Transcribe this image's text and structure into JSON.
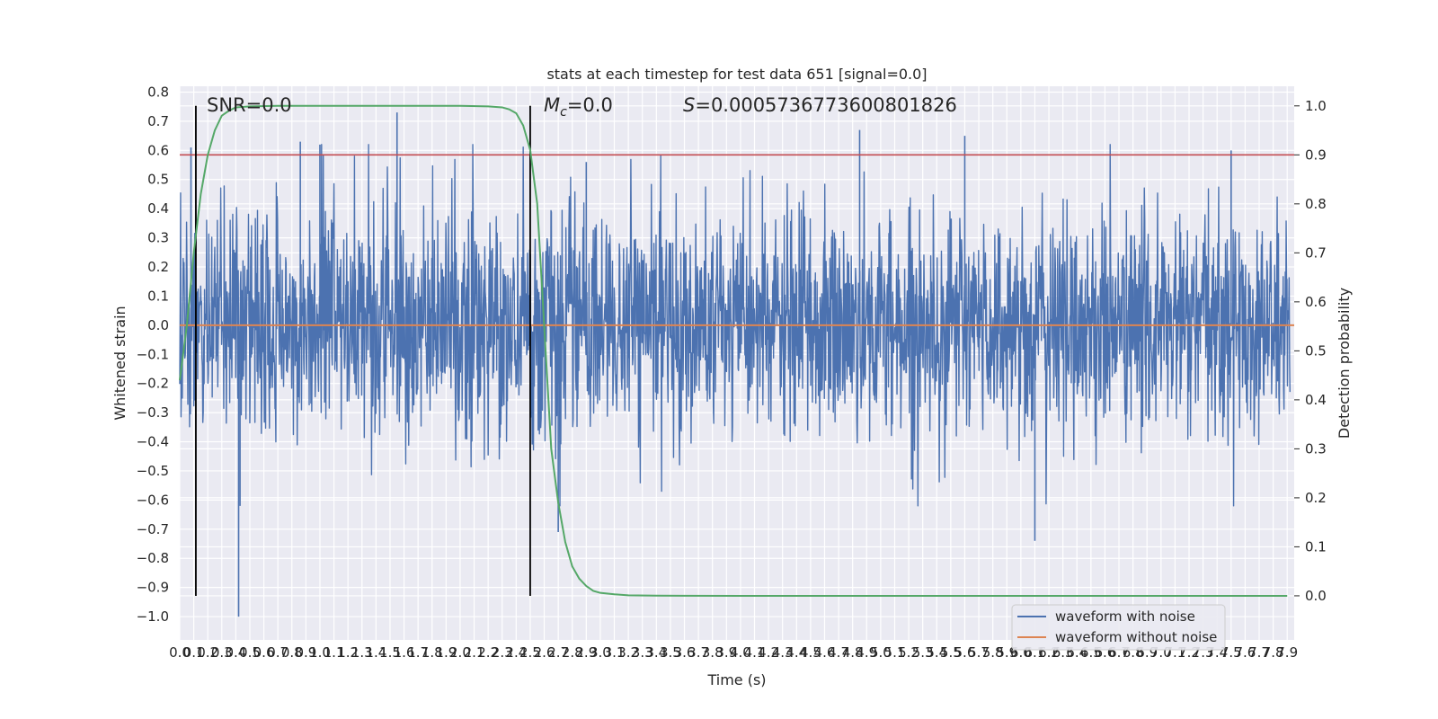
{
  "chart_data": {
    "type": "line",
    "title": "stats at each timestep for test data 651 [signal=0.0]",
    "xlabel": "Time (s)",
    "ylabel": "Whitened strain",
    "y2label": "Detection probability",
    "xlim": [
      0.0,
      7.95
    ],
    "ylim": [
      -1.08,
      0.82
    ],
    "y2lim": [
      -0.09,
      1.04
    ],
    "x_ticks": [
      "0.0",
      "0.1",
      "0.2",
      "0.3",
      "0.4",
      "0.5",
      "0.6",
      "0.7",
      "0.8",
      "0.9",
      "1.0",
      "1.1",
      "1.2",
      "1.3",
      "1.4",
      "1.5",
      "1.6",
      "1.7",
      "1.8",
      "1.9",
      "2.0",
      "2.1",
      "2.2",
      "2.3",
      "2.4",
      "2.5",
      "2.6",
      "2.7",
      "2.8",
      "2.9",
      "3.0",
      "3.1",
      "3.2",
      "3.3",
      "3.4",
      "3.5",
      "3.6",
      "3.7",
      "3.8",
      "3.9",
      "4.0",
      "4.1",
      "4.2",
      "4.3",
      "4.4",
      "4.5",
      "4.6",
      "4.7",
      "4.8",
      "4.9",
      "5.0",
      "5.1",
      "5.2",
      "5.3",
      "5.4",
      "5.5",
      "5.6",
      "5.7",
      "5.8",
      "5.9",
      "6.0",
      "6.1",
      "6.2",
      "6.3",
      "6.4",
      "6.5",
      "6.6",
      "6.7",
      "6.8",
      "6.9",
      "7.0",
      "7.1",
      "7.2",
      "7.3",
      "7.4",
      "7.5",
      "7.6",
      "7.7",
      "7.8",
      "7.9"
    ],
    "y_ticks": [
      "0.8",
      "0.7",
      "0.6",
      "0.5",
      "0.4",
      "0.3",
      "0.2",
      "0.1",
      "0.0",
      "−0.1",
      "−0.2",
      "−0.3",
      "−0.4",
      "−0.5",
      "−0.6",
      "−0.7",
      "−0.8",
      "−0.9",
      "−1.0"
    ],
    "y2_ticks": [
      "1.0",
      "0.9",
      "0.8",
      "0.7",
      "0.6",
      "0.5",
      "0.4",
      "0.3",
      "0.2",
      "0.1",
      "0.0"
    ],
    "series": [
      {
        "name": "waveform with noise",
        "color": "#4c72b0",
        "description_values": "dense noise oscillating roughly between -0.5 and 0.5 with spikes to 0.73 near t=1.55 and -1.0 near t=0.42"
      },
      {
        "name": "waveform without noise",
        "color": "#dd8452",
        "values_constant": 0.0
      },
      {
        "name": "detection probability",
        "color": "#55a868",
        "axis": "right",
        "x": [
          0.0,
          0.05,
          0.1,
          0.15,
          0.2,
          0.25,
          0.3,
          0.35,
          0.4,
          0.5,
          0.7,
          1.0,
          1.5,
          2.0,
          2.2,
          2.3,
          2.35,
          2.4,
          2.45,
          2.5,
          2.55,
          2.6,
          2.65,
          2.7,
          2.75,
          2.8,
          2.85,
          2.9,
          2.95,
          3.0,
          3.1,
          3.2,
          3.4,
          3.6,
          4.0,
          5.0,
          6.0,
          7.0,
          7.9
        ],
        "y": [
          0.44,
          0.55,
          0.7,
          0.82,
          0.9,
          0.95,
          0.98,
          0.99,
          0.997,
          0.999,
          1.0,
          1.0,
          1.0,
          1.0,
          0.999,
          0.997,
          0.993,
          0.985,
          0.96,
          0.91,
          0.8,
          0.55,
          0.3,
          0.19,
          0.11,
          0.06,
          0.035,
          0.02,
          0.01,
          0.006,
          0.003,
          0.001,
          0.0003,
          0.0001,
          0.0,
          0.0,
          0.0,
          0.0,
          0.0
        ]
      }
    ],
    "hlines": [
      {
        "value": 0.9,
        "axis": "right",
        "color": "#c44e52"
      }
    ],
    "vlines": [
      {
        "x": 0.115,
        "color": "#000000"
      },
      {
        "x": 2.5,
        "color": "#000000"
      }
    ],
    "annotations": {
      "snr": "SNR=0.0",
      "mc_value": "=0.0",
      "s_value": "=0.0005736773600801826",
      "mc_symbol": "M",
      "mc_sub": "c",
      "s_symbol": "S"
    },
    "legend": {
      "position": "lower right",
      "entries": [
        "waveform with noise",
        "waveform without noise"
      ]
    },
    "grid": true
  }
}
